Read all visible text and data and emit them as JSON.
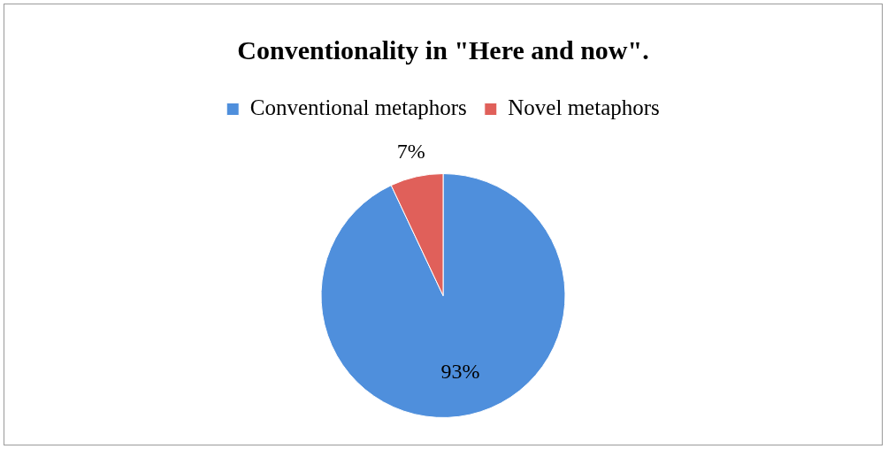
{
  "chart_data": {
    "type": "pie",
    "title": "Conventionality in \"Here and now\".",
    "categories": [
      "Conventional metaphors",
      "Novel metaphors"
    ],
    "values": [
      93,
      7
    ],
    "colors": [
      "#4f8fdc",
      "#e0605a"
    ],
    "value_labels": [
      "93%",
      "7%"
    ],
    "legend": "top"
  }
}
